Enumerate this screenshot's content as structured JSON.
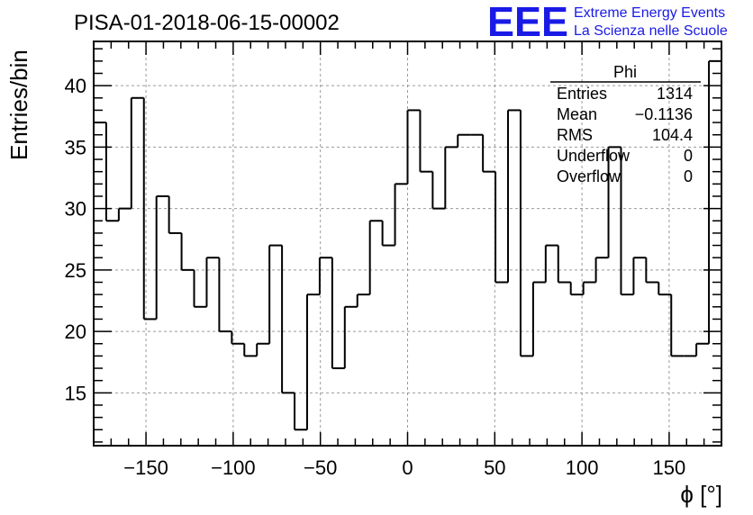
{
  "chart_data": {
    "type": "bar",
    "title": "PISA-01-2018-06-15-00002",
    "xlabel": "ϕ [°]",
    "ylabel": "Entries/bin",
    "xlim": [
      -180,
      180
    ],
    "ylim": [
      10.7,
      43.6
    ],
    "bin_width": 7.2,
    "bin_start": -180,
    "grid": true,
    "x_ticks": [
      -150,
      -100,
      -50,
      0,
      50,
      100,
      150
    ],
    "x_tick_labels": [
      "−150",
      "−100",
      "−50",
      "0",
      "50",
      "100",
      "150"
    ],
    "y_ticks": [
      15,
      20,
      25,
      30,
      35,
      40
    ],
    "y_tick_labels": [
      "15",
      "20",
      "25",
      "30",
      "35",
      "40"
    ],
    "values": [
      37,
      29,
      30,
      39,
      21,
      31,
      28,
      25,
      22,
      26,
      20,
      19,
      18,
      19,
      27,
      15,
      12,
      23,
      26,
      17,
      22,
      23,
      29,
      27,
      32,
      38,
      33,
      30,
      35,
      36,
      36,
      33,
      24,
      38,
      18,
      24,
      27,
      24,
      23,
      24,
      26,
      35,
      23,
      26,
      24,
      23,
      18,
      18,
      19,
      42
    ]
  },
  "stats_box": {
    "name": "Phi",
    "rows": [
      {
        "label": "Entries",
        "value": "1314"
      },
      {
        "label": "Mean",
        "value": "−0.1136"
      },
      {
        "label": "RMS",
        "value": "104.4"
      },
      {
        "label": "Underflow",
        "value": "0"
      },
      {
        "label": "Overflow",
        "value": "0"
      }
    ]
  },
  "logo": {
    "mark": "EEE",
    "line1": "Extreme Energy Events",
    "line2": "La Scienza nelle Scuole"
  },
  "colors": {
    "histogram_line": "#000000",
    "grid": "#9a9a9a",
    "logo": "#1a1ae6"
  }
}
